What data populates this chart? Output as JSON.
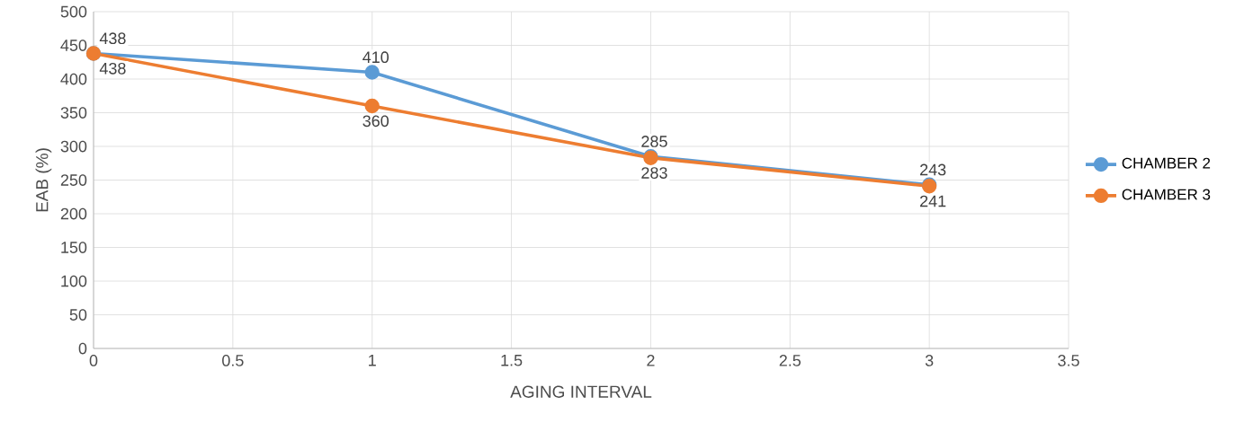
{
  "chart_data": {
    "type": "line",
    "xlabel": "AGING INTERVAL",
    "ylabel": "EAB (%)",
    "x": [
      0,
      1,
      2,
      3
    ],
    "series": [
      {
        "name": "CHAMBER 2",
        "color": "#5b9bd5",
        "values": [
          438,
          410,
          285,
          243
        ]
      },
      {
        "name": "CHAMBER 3",
        "color": "#ed7d31",
        "values": [
          438,
          360,
          283,
          241
        ]
      }
    ],
    "xlim": [
      0,
      3.5
    ],
    "xticks": [
      0,
      0.5,
      1,
      1.5,
      2,
      2.5,
      3,
      3.5
    ],
    "ylim": [
      0,
      500
    ],
    "yticks": [
      0,
      50,
      100,
      150,
      200,
      250,
      300,
      350,
      400,
      450,
      500
    ],
    "grid": true,
    "legend": "right",
    "marker": "circle",
    "line_style": "solid",
    "data_labels": true
  }
}
